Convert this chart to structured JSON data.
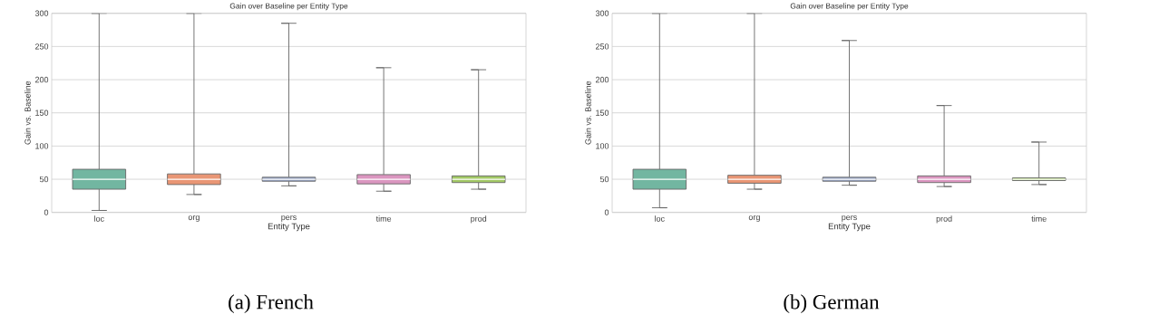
{
  "chart_data": [
    {
      "type": "box",
      "title": "Gain over Baseline per Entity Type",
      "xlabel": "Entity Type",
      "ylabel": "Gain vs. Baseline",
      "categories": [
        "loc",
        "org",
        "pers",
        "time",
        "prod"
      ],
      "colors": [
        "#72b6a1",
        "#e99675",
        "#95a3c3",
        "#db96c0",
        "#a2c865"
      ],
      "boxes": [
        {
          "low": 3,
          "q1": 35,
          "median": 50,
          "q3": 65,
          "high": 300
        },
        {
          "low": 27,
          "q1": 42,
          "median": 50,
          "q3": 58,
          "high": 300
        },
        {
          "low": 40,
          "q1": 47,
          "median": 50,
          "q3": 53,
          "high": 285
        },
        {
          "low": 32,
          "q1": 43,
          "median": 50,
          "q3": 57,
          "high": 218
        },
        {
          "low": 35,
          "q1": 45,
          "median": 50,
          "q3": 55,
          "high": 215
        }
      ],
      "ylim": [
        0,
        300
      ],
      "yticks": [
        0,
        50,
        100,
        150,
        200,
        250,
        300
      ],
      "grid": "y",
      "annotations": [
        "(a) French"
      ]
    },
    {
      "type": "box",
      "title": "Gain over Baseline per Entity Type",
      "xlabel": "Entity Type",
      "ylabel": "Gain vs. Baseline",
      "categories": [
        "loc",
        "org",
        "pers",
        "prod",
        "time"
      ],
      "colors": [
        "#72b6a1",
        "#e99675",
        "#95a3c3",
        "#db96c0",
        "#a2c865"
      ],
      "boxes": [
        {
          "low": 7,
          "q1": 35,
          "median": 50,
          "q3": 65,
          "high": 300
        },
        {
          "low": 35,
          "q1": 44,
          "median": 50,
          "q3": 56,
          "high": 300
        },
        {
          "low": 41,
          "q1": 47,
          "median": 50,
          "q3": 53,
          "high": 259
        },
        {
          "low": 39,
          "q1": 45,
          "median": 50,
          "q3": 55,
          "high": 161
        },
        {
          "low": 42,
          "q1": 48,
          "median": 50,
          "q3": 52,
          "high": 106
        }
      ],
      "ylim": [
        0,
        300
      ],
      "yticks": [
        0,
        50,
        100,
        150,
        200,
        250,
        300
      ],
      "grid": "y",
      "annotations": [
        "(b) German"
      ]
    }
  ]
}
